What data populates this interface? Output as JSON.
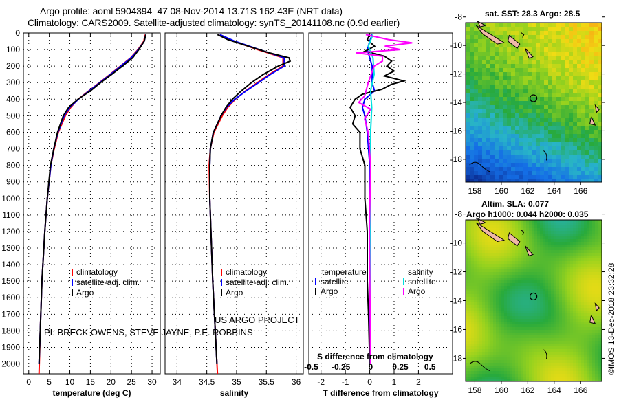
{
  "header": {
    "title1": "Argo profile: aoml 5904394_47 08-Nov-2014 13.71S 162.43E (NRT data)",
    "title2": "Climatology: CARS2009. Satellite-adjusted climatology: synTS_20141108.nc (0.9d earlier)"
  },
  "credits": {
    "line1": "US ARGO PROJECT",
    "line2": "PI: BRECK OWENS, STEVE JAYNE, P.E. ROBBINS"
  },
  "timestamp": "©IMOS 13-Dec-2018 23:32:28",
  "maps": {
    "sst_title": "sat. SST: 28.3 Argo: 28.5",
    "sla_title1": "Altim. SLA: 0.077",
    "sla_title2": "Argo h1000: 0.044 h2000: 0.035",
    "lat_ticks": [
      -8,
      -10,
      -12,
      -14,
      -16,
      -18
    ],
    "lon_ticks": [
      158,
      160,
      162,
      164,
      166
    ],
    "lat_range": [
      -8.4,
      -19.6
    ],
    "lon_range": [
      157.3,
      167.6
    ],
    "profile_location": {
      "lat": -13.71,
      "lon": 162.43
    }
  },
  "colors": {
    "climatology": "#ff0000",
    "satellite": "#0000ff",
    "argo": "#000000",
    "sat_salinity": "#00e0e0",
    "argo_salinity": "#ff00ff",
    "land": "#f0b8a8"
  },
  "chart_data": {
    "type": "line",
    "ylabel": "depth",
    "ylim": [
      0,
      2060
    ],
    "yticks": [
      0,
      100,
      200,
      300,
      400,
      500,
      600,
      700,
      800,
      900,
      1000,
      1100,
      1200,
      1300,
      1400,
      1500,
      1600,
      1700,
      1800,
      1900,
      2000
    ],
    "panels": [
      {
        "xlabel": "temperature (deg C)",
        "xlim": [
          -1.3,
          32
        ],
        "xticks": [
          0,
          5,
          10,
          15,
          20,
          25,
          30
        ],
        "legend": [
          "climatology",
          "satellite-adj. clim.",
          "Argo"
        ],
        "series": [
          {
            "name": "climatology",
            "color": "#ff0000",
            "points": [
              [
                10,
                28.3
              ],
              [
                50,
                28.0
              ],
              [
                100,
                26.6
              ],
              [
                150,
                24.8
              ],
              [
                200,
                22.3
              ],
              [
                250,
                19.8
              ],
              [
                300,
                17.2
              ],
              [
                350,
                14.6
              ],
              [
                400,
                12.0
              ],
              [
                450,
                10.2
              ],
              [
                500,
                8.9
              ],
              [
                600,
                7.2
              ],
              [
                700,
                6.2
              ],
              [
                800,
                5.4
              ],
              [
                1000,
                4.5
              ],
              [
                1200,
                3.9
              ],
              [
                1500,
                3.2
              ],
              [
                1800,
                2.8
              ],
              [
                2060,
                2.5
              ]
            ]
          },
          {
            "name": "satellite-adj. clim.",
            "color": "#0000ff",
            "points": [
              [
                10,
                28.5
              ],
              [
                50,
                28.1
              ],
              [
                100,
                26.7
              ],
              [
                150,
                24.9
              ],
              [
                200,
                22.4
              ],
              [
                250,
                19.9
              ],
              [
                300,
                17.3
              ],
              [
                350,
                14.7
              ],
              [
                400,
                12.1
              ],
              [
                450,
                10.0
              ],
              [
                500,
                8.6
              ],
              [
                600,
                7.1
              ],
              [
                700,
                6.1
              ],
              [
                800,
                5.4
              ],
              [
                1000,
                4.5
              ],
              [
                1200,
                3.9
              ],
              [
                1500,
                3.2
              ],
              [
                1800,
                2.8
              ],
              [
                2000,
                2.5
              ]
            ]
          },
          {
            "name": "Argo",
            "color": "#000000",
            "points": [
              [
                10,
                28.5
              ],
              [
                50,
                28.1
              ],
              [
                100,
                26.8
              ],
              [
                150,
                25.3
              ],
              [
                200,
                22.8
              ],
              [
                250,
                20.2
              ],
              [
                300,
                17.5
              ],
              [
                350,
                15.0
              ],
              [
                400,
                12.0
              ],
              [
                450,
                9.7
              ],
              [
                500,
                8.4
              ],
              [
                600,
                7.0
              ],
              [
                700,
                6.1
              ],
              [
                800,
                5.3
              ],
              [
                1000,
                4.5
              ],
              [
                1200,
                3.9
              ],
              [
                1500,
                3.2
              ],
              [
                1800,
                2.8
              ],
              [
                2000,
                2.5
              ]
            ]
          }
        ]
      },
      {
        "xlabel": "salinity",
        "xlim": [
          33.8,
          36.12
        ],
        "xticks": [
          34,
          34.5,
          35,
          35.5,
          36
        ],
        "legend": [
          "climatology",
          "satellite-adj. clim.",
          "Argo"
        ],
        "series": [
          {
            "name": "climatology",
            "color": "#ff0000",
            "points": [
              [
                10,
                34.72
              ],
              [
                50,
                34.95
              ],
              [
                100,
                35.35
              ],
              [
                150,
                35.78
              ],
              [
                200,
                35.78
              ],
              [
                250,
                35.55
              ],
              [
                300,
                35.35
              ],
              [
                350,
                35.15
              ],
              [
                400,
                34.98
              ],
              [
                450,
                34.85
              ],
              [
                500,
                34.76
              ],
              [
                600,
                34.62
              ],
              [
                700,
                34.56
              ],
              [
                800,
                34.54
              ],
              [
                1000,
                34.55
              ],
              [
                1500,
                34.6
              ],
              [
                2060,
                34.68
              ]
            ]
          },
          {
            "name": "satellite-adj. clim.",
            "color": "#0000ff",
            "points": [
              [
                10,
                34.72
              ],
              [
                50,
                34.97
              ],
              [
                100,
                35.38
              ],
              [
                150,
                35.8
              ],
              [
                200,
                35.8
              ],
              [
                250,
                35.57
              ],
              [
                300,
                35.37
              ],
              [
                350,
                35.16
              ],
              [
                400,
                34.97
              ],
              [
                450,
                34.83
              ],
              [
                500,
                34.74
              ],
              [
                600,
                34.61
              ],
              [
                700,
                34.56
              ],
              [
                800,
                34.55
              ],
              [
                1000,
                34.55
              ],
              [
                1500,
                34.6
              ],
              [
                2000,
                34.67
              ]
            ]
          },
          {
            "name": "Argo",
            "color": "#000000",
            "points": [
              [
                10,
                34.68
              ],
              [
                40,
                34.85
              ],
              [
                80,
                35.2
              ],
              [
                120,
                35.55
              ],
              [
                150,
                35.88
              ],
              [
                170,
                35.9
              ],
              [
                200,
                35.7
              ],
              [
                250,
                35.45
              ],
              [
                300,
                35.25
              ],
              [
                350,
                35.08
              ],
              [
                400,
                34.93
              ],
              [
                450,
                34.82
              ],
              [
                500,
                34.74
              ],
              [
                600,
                34.61
              ],
              [
                700,
                34.56
              ],
              [
                800,
                34.55
              ],
              [
                1000,
                34.55
              ],
              [
                1500,
                34.6
              ],
              [
                2000,
                34.67
              ]
            ]
          }
        ]
      },
      {
        "xlabel": "T difference from climatology",
        "xlabel2": "S difference from climatology",
        "xlim": [
          -2.5,
          3.4
        ],
        "xticks": [
          -2,
          -1,
          0,
          1,
          2
        ],
        "xlim2": [
          -0.52,
          0.69
        ],
        "xticks2": [
          -0.5,
          -0.25,
          0,
          0.25,
          0.5
        ],
        "legend_t_title": "temperature",
        "legend_s_title": "salinity",
        "legend_t": [
          "satellite",
          "Argo"
        ],
        "legend_s": [
          "satellite",
          "Argo"
        ],
        "series": [
          {
            "name": "T satellite",
            "axis": "T",
            "color": "#0000ff",
            "points": [
              [
                10,
                0.1
              ],
              [
                50,
                0.0
              ],
              [
                100,
                -0.1
              ],
              [
                150,
                0.0
              ],
              [
                200,
                0.1
              ],
              [
                300,
                0.1
              ],
              [
                350,
                0.2
              ],
              [
                400,
                -0.2
              ],
              [
                450,
                -0.3
              ],
              [
                500,
                -0.2
              ],
              [
                600,
                -0.1
              ],
              [
                800,
                0.0
              ],
              [
                2000,
                0.0
              ]
            ]
          },
          {
            "name": "T Argo",
            "axis": "T",
            "color": "#000000",
            "points": [
              [
                10,
                0.0
              ],
              [
                40,
                -0.1
              ],
              [
                80,
                0.2
              ],
              [
                110,
                -0.2
              ],
              [
                140,
                0.6
              ],
              [
                170,
                0.9
              ],
              [
                200,
                0.7
              ],
              [
                230,
                1.0
              ],
              [
                260,
                0.6
              ],
              [
                290,
                1.4
              ],
              [
                310,
                0.9
              ],
              [
                340,
                0.5
              ],
              [
                370,
                -0.3
              ],
              [
                400,
                -0.6
              ],
              [
                450,
                -0.8
              ],
              [
                500,
                -0.6
              ],
              [
                550,
                -0.7
              ],
              [
                600,
                -0.4
              ],
              [
                700,
                -0.4
              ],
              [
                800,
                -0.2
              ],
              [
                1000,
                -0.2
              ],
              [
                1200,
                -0.1
              ],
              [
                1500,
                -0.1
              ],
              [
                1700,
                -0.05
              ],
              [
                2000,
                0.0
              ]
            ]
          },
          {
            "name": "S satellite",
            "axis": "S",
            "color": "#00e0e0",
            "points": [
              [
                10,
                0.02
              ],
              [
                80,
                -0.02
              ],
              [
                150,
                0.02
              ],
              [
                250,
                0.03
              ],
              [
                350,
                0.0
              ],
              [
                450,
                0.01
              ],
              [
                600,
                0.0
              ],
              [
                2000,
                0.0
              ]
            ]
          },
          {
            "name": "S Argo",
            "axis": "S",
            "color": "#ff00ff",
            "points": [
              [
                10,
                -0.04
              ],
              [
                40,
                0.15
              ],
              [
                60,
                0.35
              ],
              [
                80,
                0.12
              ],
              [
                100,
                0.25
              ],
              [
                120,
                -0.12
              ],
              [
                140,
                0.1
              ],
              [
                170,
                0.1
              ],
              [
                200,
                0.03
              ],
              [
                300,
                -0.02
              ],
              [
                380,
                -0.05
              ],
              [
                420,
                -0.1
              ],
              [
                460,
                0.0
              ],
              [
                520,
                -0.05
              ],
              [
                600,
                -0.02
              ],
              [
                800,
                0.0
              ],
              [
                1200,
                -0.01
              ],
              [
                2000,
                0.0
              ]
            ]
          }
        ]
      }
    ]
  }
}
